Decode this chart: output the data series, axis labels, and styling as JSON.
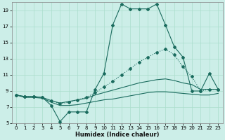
{
  "xlabel": "Humidex (Indice chaleur)",
  "bg_color": "#cceee8",
  "line_color": "#1a6b5e",
  "grid_color": "#aaddcc",
  "xlim": [
    -0.5,
    23.5
  ],
  "ylim": [
    5,
    20
  ],
  "yticks": [
    5,
    7,
    9,
    11,
    13,
    15,
    17,
    19
  ],
  "xticks": [
    0,
    1,
    2,
    3,
    4,
    5,
    6,
    7,
    8,
    9,
    10,
    11,
    12,
    13,
    14,
    15,
    16,
    17,
    18,
    19,
    20,
    21,
    22,
    23
  ],
  "line1_x": [
    0,
    1,
    2,
    3,
    4,
    5,
    6,
    7,
    8,
    9,
    10,
    11,
    12,
    13,
    14,
    15,
    16,
    17,
    18,
    19,
    20,
    21,
    22,
    23
  ],
  "line1_y": [
    8.5,
    8.3,
    8.3,
    8.2,
    7.2,
    5.2,
    6.4,
    6.4,
    6.4,
    9.2,
    11.2,
    17.2,
    19.8,
    19.2,
    19.2,
    19.2,
    19.8,
    17.2,
    14.5,
    13.2,
    9.0,
    9.0,
    11.2,
    9.2
  ],
  "line2_x": [
    0,
    1,
    2,
    3,
    4,
    5,
    6,
    7,
    8,
    9,
    10,
    11,
    12,
    13,
    14,
    15,
    16,
    17,
    18,
    19,
    20,
    21,
    22,
    23
  ],
  "line2_y": [
    8.5,
    8.3,
    8.3,
    8.2,
    7.8,
    7.4,
    7.6,
    7.9,
    8.2,
    8.8,
    9.5,
    10.2,
    11.0,
    11.8,
    12.6,
    13.2,
    13.8,
    14.2,
    13.5,
    12.0,
    10.8,
    9.0,
    9.2,
    9.2
  ],
  "line3_x": [
    0,
    1,
    2,
    3,
    4,
    5,
    6,
    7,
    8,
    9,
    10,
    11,
    12,
    13,
    14,
    15,
    16,
    17,
    18,
    19,
    20,
    21,
    22,
    23
  ],
  "line3_y": [
    8.5,
    8.3,
    8.3,
    8.2,
    7.8,
    7.5,
    7.7,
    7.9,
    8.1,
    8.5,
    8.8,
    9.1,
    9.4,
    9.7,
    10.0,
    10.2,
    10.4,
    10.5,
    10.3,
    10.0,
    9.8,
    9.2,
    9.2,
    9.2
  ],
  "line4_x": [
    0,
    1,
    2,
    3,
    4,
    5,
    6,
    7,
    8,
    9,
    10,
    11,
    12,
    13,
    14,
    15,
    16,
    17,
    18,
    19,
    20,
    21,
    22,
    23
  ],
  "line4_y": [
    8.5,
    8.2,
    8.2,
    8.1,
    7.6,
    7.2,
    7.2,
    7.3,
    7.5,
    7.7,
    7.9,
    8.0,
    8.2,
    8.4,
    8.6,
    8.8,
    8.9,
    8.9,
    8.8,
    8.7,
    8.6,
    8.5,
    8.5,
    8.7
  ]
}
